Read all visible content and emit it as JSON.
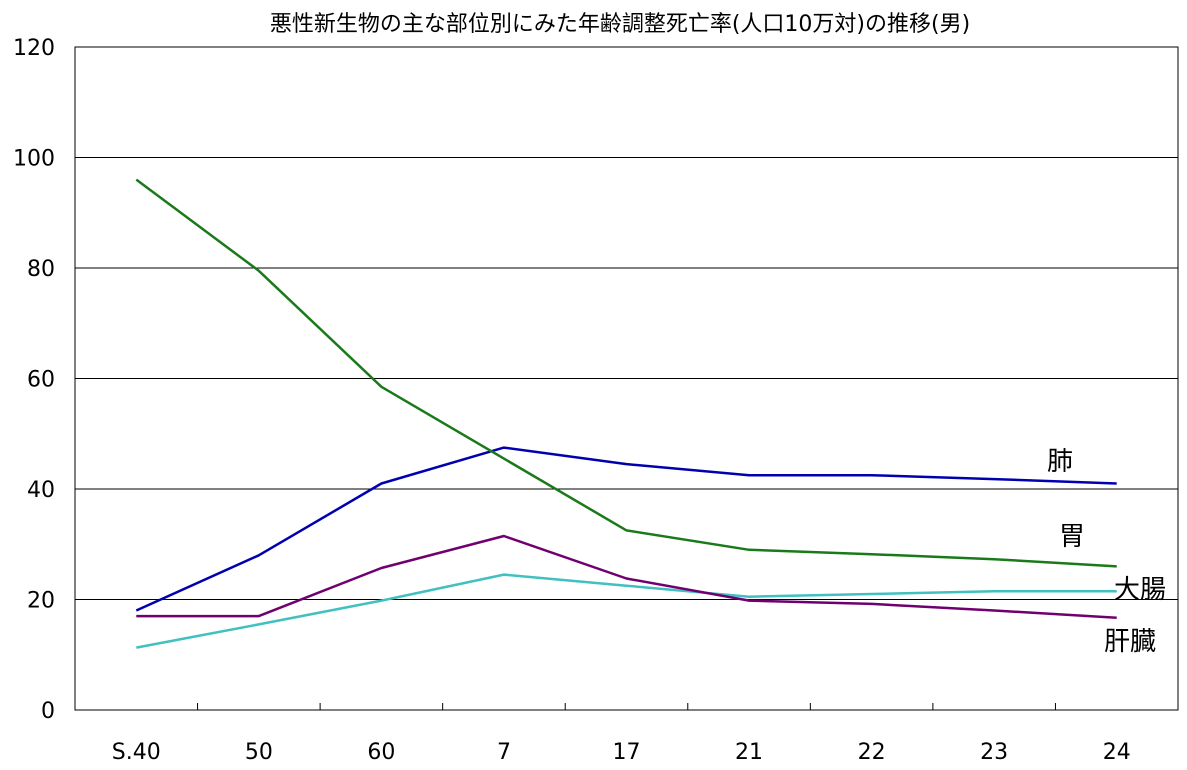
{
  "chart_data": {
    "type": "line",
    "title": "悪性新生物の主な部位別にみた年齢調整死亡率(人口10万対)の推移(男)",
    "xlabel": "",
    "ylabel": "",
    "categories": [
      "S.40",
      "50",
      "60",
      "7",
      "17",
      "21",
      "22",
      "23",
      "24"
    ],
    "ylim": [
      0,
      120
    ],
    "yticks": [
      0,
      20,
      40,
      60,
      80,
      100,
      120
    ],
    "grid": true,
    "series": [
      {
        "name": "肺",
        "color": "#0000b0",
        "values": [
          18.0,
          28.0,
          41.0,
          47.5,
          44.5,
          42.5,
          42.5,
          41.8,
          41.0
        ]
      },
      {
        "name": "胃",
        "color": "#1a7a1a",
        "values": [
          96.0,
          79.5,
          58.5,
          45.5,
          32.5,
          29.0,
          28.2,
          27.3,
          26.0
        ]
      },
      {
        "name": "大腸",
        "color": "#40c0c0",
        "values": [
          11.3,
          15.5,
          19.8,
          24.5,
          22.5,
          20.5,
          21.0,
          21.5,
          21.5
        ]
      },
      {
        "name": "肝臓",
        "color": "#700070",
        "values": [
          17.0,
          17.0,
          25.7,
          31.5,
          23.8,
          19.8,
          19.2,
          18.0,
          16.7
        ]
      }
    ]
  }
}
